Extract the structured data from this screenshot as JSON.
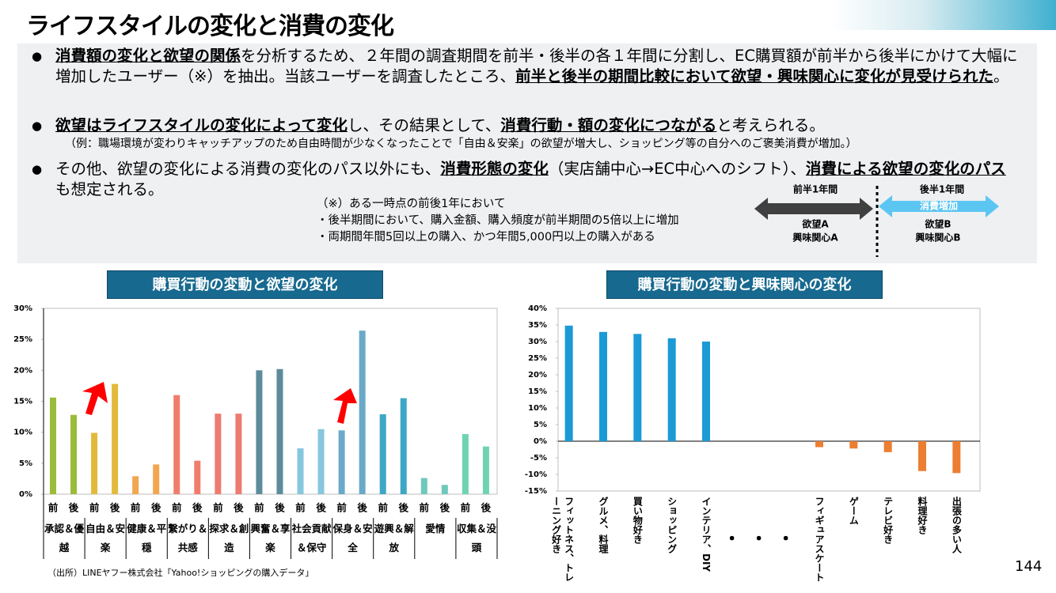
{
  "title": "ライフスタイルの変化と消費の変化",
  "bullets": [
    {
      "parts": [
        {
          "text": "消費額の変化と欲望の関係",
          "strong": true
        },
        {
          "text": "を分析するため、２年間の調査期間を前半・後半の各１年間に分割し、EC購買額が前半から後半にかけて大幅に増加したユーザー（※）を抽出。当該ユーザーを調査したところ、",
          "strong": false
        },
        {
          "text": "前半と後半の期間比較において欲望・興味関心に変化が見受けられた",
          "strong": true
        },
        {
          "text": "。",
          "strong": false
        }
      ]
    },
    {
      "parts": [
        {
          "text": "欲望はライフスタイルの変化によって変化",
          "strong": true
        },
        {
          "text": "し、その結果として、",
          "strong": false
        },
        {
          "text": "消費行動・額の変化につながる",
          "strong": true
        },
        {
          "text": "と考えられる。",
          "strong": false
        }
      ],
      "note": "（例：職場環境が変わりキャッチアップのため自由時間が少なくなったことで「自由＆安楽」の欲望が増大し、ショッピング等の自分へのご褒美消費が増加。）"
    },
    {
      "parts": [
        {
          "text": "その他、欲望の変化による消費の変化のパス以外にも、",
          "strong": false
        },
        {
          "text": "消費形態の変化",
          "strong": true
        },
        {
          "text": "（実店舗中心→EC中心へのシフト）、",
          "strong": false
        },
        {
          "text": "消費による欲望の変化のパス",
          "strong": true
        },
        {
          "text": "も想定される。",
          "strong": false
        }
      ]
    }
  ],
  "footnote": [
    "（※）ある一時点の前後1年において",
    "・後半期間において、購入金額、購入頻度が前半期間の5倍以上に増加",
    "・両期間年間5回以上の購入、かつ年間5,000円以上の購入がある"
  ],
  "diagram": {
    "before": "前半1年間",
    "after": "後半1年間",
    "arrow": "消費増加",
    "before_labels": [
      "欲望A",
      "興味関心A"
    ],
    "after_labels": [
      "欲望B",
      "興味関心B"
    ]
  },
  "chart_data": [
    {
      "type": "bar",
      "title": "購買行動の変動と欲望の変化",
      "categories": [
        "承認＆優越",
        "自由＆安楽",
        "健康＆平穏",
        "繋がり＆共感",
        "探求＆創造",
        "興奮＆享楽",
        "社会貢献＆保守",
        "保身＆安全",
        "遊興＆解放",
        "愛情",
        "収集＆没頭"
      ],
      "colors": [
        "#9bbb3b",
        "#e2b93b",
        "#f2a650",
        "#f07d6c",
        "#ee7b70",
        "#5d8b9b",
        "#86c7de",
        "#6aaac8",
        "#3ea7c5",
        "#6ec9bb",
        "#6fd3b2"
      ],
      "series": [
        {
          "name": "前",
          "values": [
            15.6,
            9.9,
            2.9,
            16.0,
            13.0,
            20.0,
            7.4,
            10.3,
            12.9,
            2.6,
            9.7
          ]
        },
        {
          "name": "後",
          "values": [
            12.8,
            17.8,
            4.8,
            5.4,
            13.0,
            20.2,
            10.5,
            26.4,
            15.5,
            1.5,
            7.7
          ]
        }
      ],
      "ylim": [
        0,
        30
      ],
      "yticks": [
        {
          "value": 0,
          "label": "0%"
        },
        {
          "value": 5,
          "label": "5%"
        },
        {
          "value": 10,
          "label": "10%"
        },
        {
          "value": 15,
          "label": "15%"
        },
        {
          "value": 20,
          "label": "20%"
        },
        {
          "value": 25,
          "label": "25%"
        },
        {
          "value": 30,
          "label": "30%"
        }
      ],
      "grid": false
    },
    {
      "type": "bar",
      "title": "購買行動の変動と興味関心の変化",
      "categories": [
        "フィットネス、トレーニング好き",
        "グルメ、料理",
        "買い物好き",
        "ショッピング",
        "インテリア、DIY",
        "・・・",
        "フィギュアスケート",
        "ゲーム",
        "テレビ好き",
        "料理好き",
        "出張の多い人"
      ],
      "values": [
        34.8,
        32.9,
        32.3,
        31.0,
        30.0,
        null,
        -1.8,
        -2.2,
        -3.3,
        -9.0,
        -9.6
      ],
      "positive_color": "#1b9ad6",
      "negative_color": "#ed7d31",
      "ylim": [
        -15,
        40
      ],
      "yticks": [
        {
          "value": -15,
          "label": "-15%"
        },
        {
          "value": -10,
          "label": "-10%"
        },
        {
          "value": -5,
          "label": "-5%"
        },
        {
          "value": 0,
          "label": "0%"
        },
        {
          "value": 5,
          "label": "5%"
        },
        {
          "value": 10,
          "label": "10%"
        },
        {
          "value": 15,
          "label": "15%"
        },
        {
          "value": 20,
          "label": "20%"
        },
        {
          "value": 25,
          "label": "25%"
        },
        {
          "value": 30,
          "label": "30%"
        },
        {
          "value": 35,
          "label": "35%"
        },
        {
          "value": 40,
          "label": "40%"
        }
      ],
      "grid": false
    }
  ],
  "source": "（出所）LINEヤフー株式会社「Yahoo!ショッピングの購入データ」",
  "page_number": "144"
}
